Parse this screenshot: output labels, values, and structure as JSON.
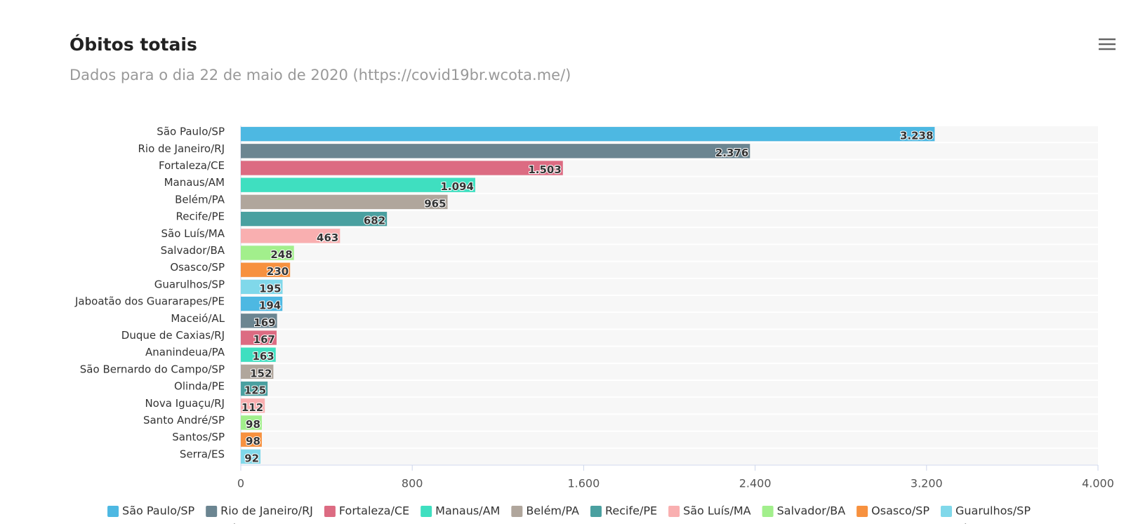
{
  "chart_data": {
    "type": "bar",
    "orientation": "horizontal",
    "title": "Óbitos totais",
    "subtitle": "Dados para o dia 22 de maio de 2020 (https://covid19br.wcota.me/)",
    "categories": [
      "São Paulo/SP",
      "Rio de Janeiro/RJ",
      "Fortaleza/CE",
      "Manaus/AM",
      "Belém/PA",
      "Recife/PE",
      "São Luís/MA",
      "Salvador/BA",
      "Osasco/SP",
      "Guarulhos/SP",
      "Jaboatão dos Guararapes/PE",
      "Maceió/AL",
      "Duque de Caxias/RJ",
      "Ananindeua/PA",
      "São Bernardo do Campo/SP",
      "Olinda/PE",
      "Nova Iguaçu/RJ",
      "Santo André/SP",
      "Santos/SP",
      "Serra/ES"
    ],
    "values": [
      3238,
      2376,
      1503,
      1094,
      965,
      682,
      463,
      248,
      230,
      195,
      194,
      169,
      167,
      163,
      152,
      125,
      112,
      98,
      98,
      92
    ],
    "value_labels": [
      "3.238",
      "2.376",
      "1.503",
      "1.094",
      "965",
      "682",
      "463",
      "248",
      "230",
      "195",
      "194",
      "169",
      "167",
      "163",
      "152",
      "125",
      "112",
      "98",
      "98",
      "92"
    ],
    "colors": [
      "#4db8e2",
      "#6b8591",
      "#dc6b82",
      "#3fdfc0",
      "#b0a69c",
      "#4aa0a0",
      "#f9afb0",
      "#a2ef8c",
      "#f7913f",
      "#80d8ea",
      "#4db8e2",
      "#6b8591",
      "#dc6b82",
      "#3fdfc0",
      "#b0a69c",
      "#4aa0a0",
      "#f9afb0",
      "#a2ef8c",
      "#f7913f",
      "#80d8ea"
    ],
    "xlim": [
      0,
      4000
    ],
    "xticks": [
      0,
      800,
      {
        "value": 1600,
        "label": "1.600"
      },
      {
        "value": 2400,
        "label": "2.400"
      },
      {
        "value": 3200,
        "label": "3.200"
      },
      {
        "value": 4000,
        "label": "4.000"
      }
    ],
    "legend": "bottom"
  }
}
